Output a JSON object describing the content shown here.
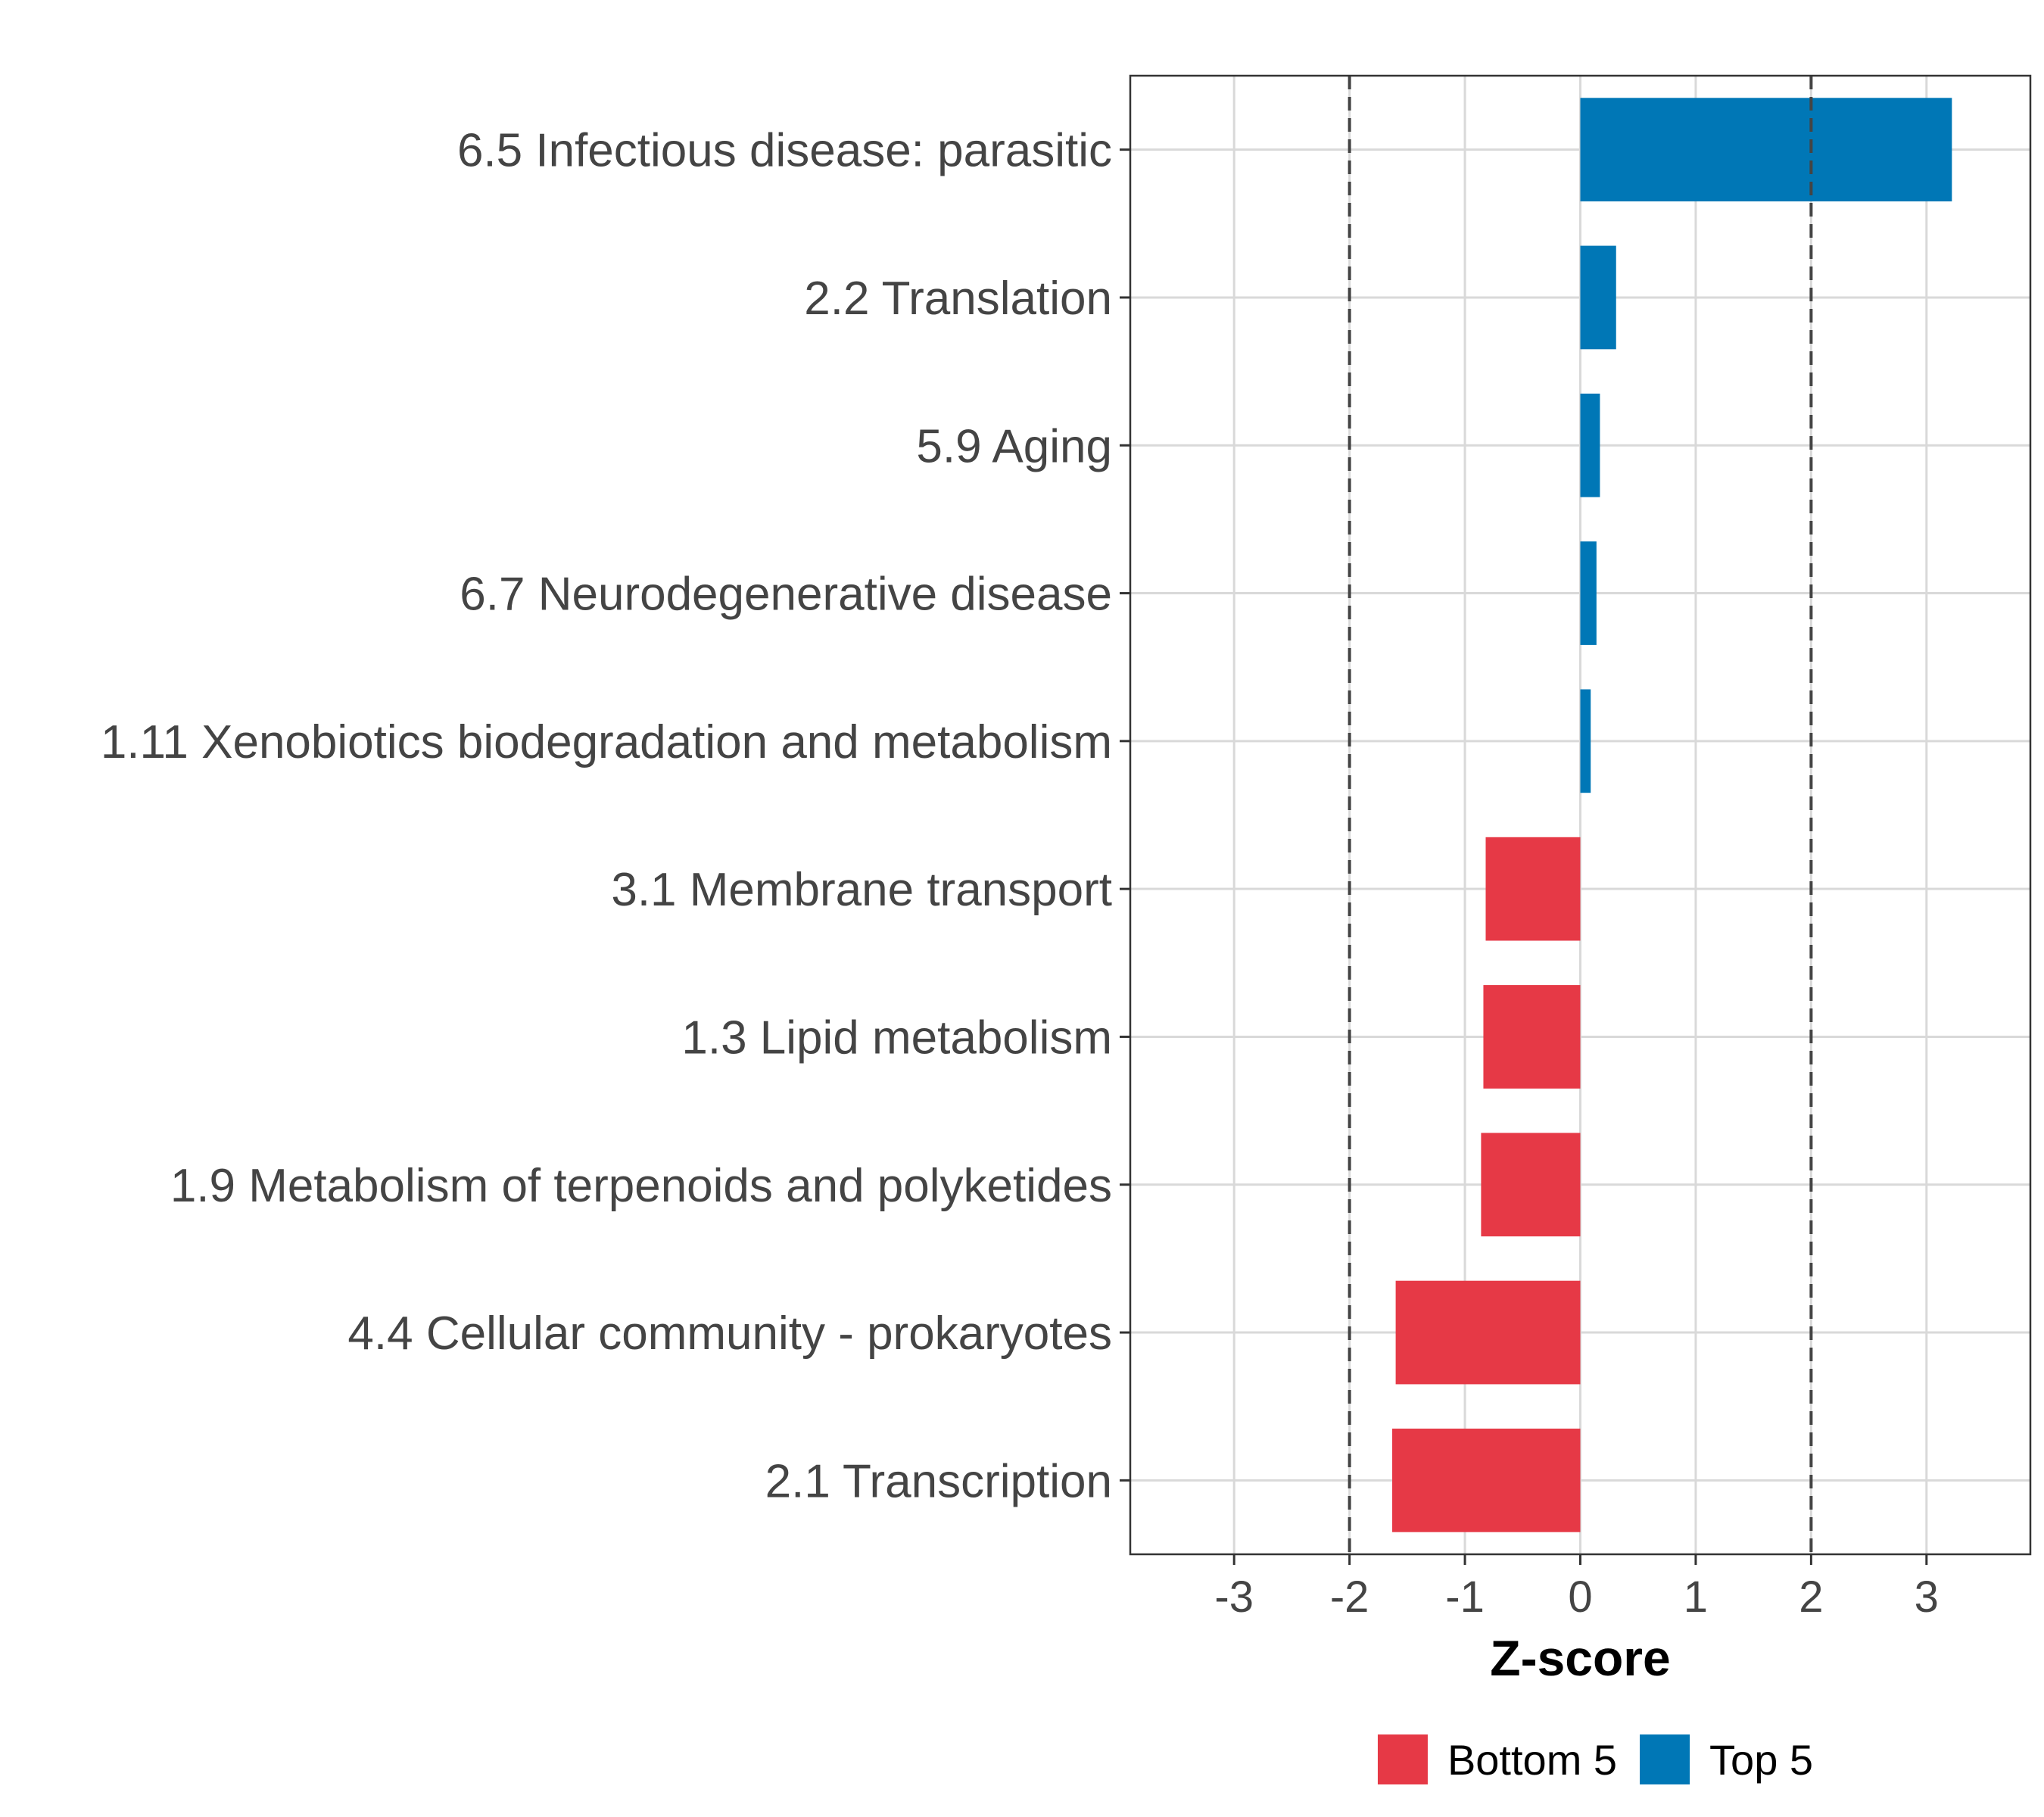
{
  "chart_data": {
    "type": "bar",
    "orientation": "horizontal",
    "title": "",
    "xlabel": "Z-score",
    "ylabel": "",
    "xlim": [
      -3.9,
      3.9
    ],
    "xticks": [
      -3,
      -2,
      -1,
      0,
      1,
      2,
      3
    ],
    "xtick_labels": [
      "-3",
      "-2",
      "-1",
      "0",
      "1",
      "2",
      "3"
    ],
    "grid": true,
    "reference_lines": [
      -2,
      2
    ],
    "categories": [
      "6.5 Infectious disease: parasitic",
      "2.2 Translation",
      "5.9 Aging",
      "6.7 Neurodegenerative disease",
      "1.11 Xenobiotics biodegradation and metabolism",
      "3.1 Membrane transport",
      "1.3 Lipid metabolism",
      "1.9 Metabolism of terpenoids and polyketides",
      "4.4 Cellular community - prokaryotes",
      "2.1 Transcription"
    ],
    "values": [
      3.22,
      0.31,
      0.17,
      0.14,
      0.09,
      -0.82,
      -0.84,
      -0.86,
      -1.6,
      -1.63
    ],
    "groups": [
      "Top 5",
      "Top 5",
      "Top 5",
      "Top 5",
      "Top 5",
      "Bottom 5",
      "Bottom 5",
      "Bottom 5",
      "Bottom 5",
      "Bottom 5"
    ],
    "legend": {
      "position": "bottom",
      "entries": [
        {
          "label": "Bottom 5",
          "color": "#E63946"
        },
        {
          "label": "Top 5",
          "color": "#0077B6"
        }
      ]
    }
  }
}
